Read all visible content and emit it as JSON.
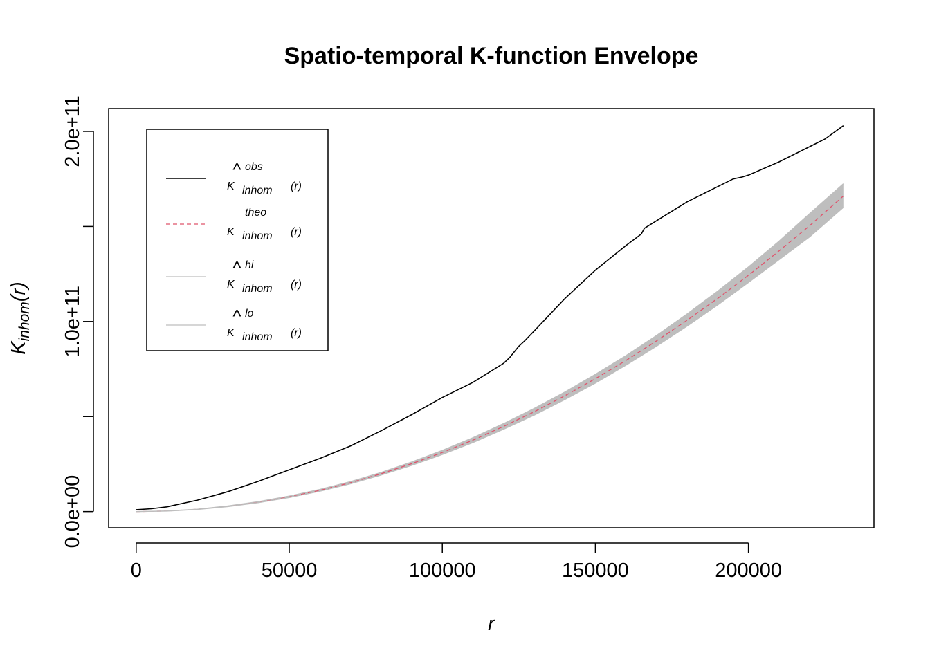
{
  "chart_data": {
    "type": "line",
    "title": "Spatio-temporal K-function Envelope",
    "xlabel": "r",
    "ylabel": {
      "main": "K",
      "sub": "inhom",
      "arg": "(r)"
    },
    "xlim": [
      -9000,
      241000
    ],
    "ylim": [
      -8500000000,
      212000000000
    ],
    "x_ticks": [
      0,
      50000,
      100000,
      150000,
      200000
    ],
    "x_tick_labels": [
      "0",
      "50000",
      "100000",
      "150000",
      "200000"
    ],
    "y_ticks": [
      0,
      50000000000,
      100000000000,
      150000000000,
      200000000000
    ],
    "y_tick_labels": [
      "0.0e+00",
      "1.0e+11",
      "2.0e+11"
    ],
    "y_labeled_ticks": [
      0,
      100000000000,
      200000000000
    ],
    "grid": false,
    "legend_position": "top-left",
    "legend": [
      {
        "main": "K",
        "hat": true,
        "sup": "obs",
        "sub": "inhom",
        "arg": "(r)",
        "style": "solid",
        "color": "#000000"
      },
      {
        "main": "K",
        "hat": false,
        "sup": "theo",
        "sub": "inhom",
        "arg": "(r)",
        "style": "dashed",
        "color": "#DF536B"
      },
      {
        "main": "K",
        "hat": true,
        "sup": "hi",
        "sub": "inhom",
        "arg": "(r)",
        "style": "solid",
        "color": "#BEBEBE"
      },
      {
        "main": "K",
        "hat": true,
        "sup": "lo",
        "sub": "inhom",
        "arg": "(r)",
        "style": "solid",
        "color": "#BEBEBE"
      }
    ],
    "series": [
      {
        "name": "obs",
        "color": "#000000",
        "style": "solid",
        "x": [
          0,
          5000,
          10000,
          20000,
          30000,
          40000,
          50000,
          60000,
          70000,
          80000,
          90000,
          100000,
          110000,
          120000,
          122000,
          125000,
          127000,
          130000,
          140000,
          150000,
          160000,
          165000,
          166000,
          170000,
          180000,
          190000,
          195000,
          198000,
          200000,
          210000,
          220000,
          225000,
          231000
        ],
        "y": [
          1000000000,
          1500000000,
          2500000000,
          6000000000,
          10500000000,
          16000000000,
          22000000000,
          28000000000,
          34500000000,
          42500000000,
          51000000000,
          60000000000,
          68000000000,
          78000000000,
          81000000000,
          87000000000,
          90000000000,
          95000000000,
          112000000000,
          127000000000,
          140000000000,
          146000000000,
          149000000000,
          153000000000,
          163000000000,
          171000000000,
          175000000000,
          176000000000,
          177000000000,
          184000000000,
          192000000000,
          196000000000,
          203000000000
        ]
      },
      {
        "name": "theo",
        "color": "#DF536B",
        "style": "dashed",
        "x": [
          0,
          10000,
          20000,
          30000,
          40000,
          50000,
          60000,
          70000,
          80000,
          90000,
          100000,
          110000,
          120000,
          130000,
          140000,
          150000,
          160000,
          170000,
          180000,
          190000,
          200000,
          210000,
          220000,
          231000
        ],
        "y": [
          0,
          300000000,
          1200000000,
          2800000000,
          5000000000,
          7800000000,
          11200000000,
          15200000000,
          19900000000,
          25200000000,
          31100000000,
          37600000000,
          44800000000,
          52500000000,
          60900000000,
          69900000000,
          79500000000,
          89800000000,
          100700000000,
          112200000000,
          124300000000,
          137100000000,
          150400000000,
          166000000000
        ]
      },
      {
        "name": "hi",
        "color": "#BEBEBE",
        "style": "solid",
        "x": [
          0,
          10000,
          20000,
          30000,
          40000,
          50000,
          60000,
          70000,
          80000,
          90000,
          100000,
          110000,
          120000,
          130000,
          140000,
          150000,
          160000,
          170000,
          180000,
          190000,
          200000,
          210000,
          220000,
          231000
        ],
        "y": [
          0,
          350000000,
          1300000000,
          3000000000,
          5300000000,
          8200000000,
          11700000000,
          15800000000,
          20600000000,
          26100000000,
          32200000000,
          38900000000,
          46300000000,
          54300000000,
          62900000000,
          72200000000,
          82100000000,
          92700000000,
          104000000000,
          116000000000,
          128700000000,
          142300000000,
          156800000000,
          172500000000
        ]
      },
      {
        "name": "lo",
        "color": "#BEBEBE",
        "style": "solid",
        "x": [
          0,
          10000,
          20000,
          30000,
          40000,
          50000,
          60000,
          70000,
          80000,
          90000,
          100000,
          110000,
          120000,
          130000,
          140000,
          150000,
          160000,
          170000,
          180000,
          190000,
          200000,
          210000,
          220000,
          231000
        ],
        "y": [
          0,
          250000000,
          1100000000,
          2600000000,
          4700000000,
          7400000000,
          10700000000,
          14600000000,
          19200000000,
          24300000000,
          30000000000,
          36300000000,
          43300000000,
          50700000000,
          58900000000,
          67600000000,
          77000000000,
          87000000000,
          97600000000,
          108700000000,
          120500000000,
          132500000000,
          144500000000,
          160000000000
        ]
      }
    ]
  }
}
